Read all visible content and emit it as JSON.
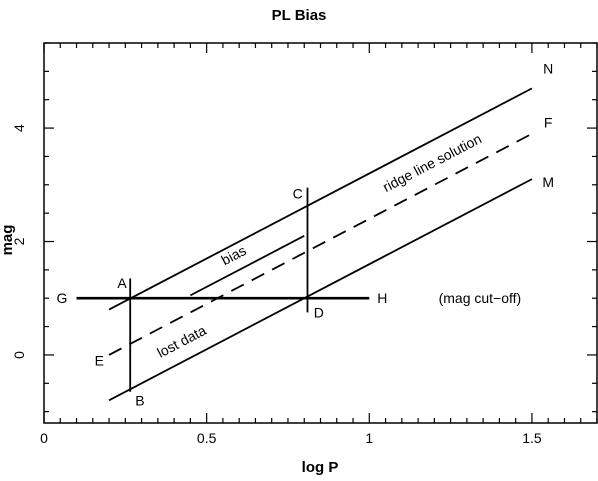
{
  "chart_data": {
    "type": "line",
    "title": "PL Bias",
    "xlabel": "log P",
    "ylabel": "mag",
    "xlim": [
      0,
      1.7
    ],
    "ylim": [
      -1.2,
      5.5
    ],
    "grid": false,
    "x_ticks": [
      0,
      0.5,
      1,
      1.5
    ],
    "x_tick_labels": [
      "0",
      "0.5",
      "1",
      "1.5"
    ],
    "y_ticks": [
      0,
      2,
      4
    ],
    "y_tick_labels": [
      "0",
      "2",
      "4"
    ],
    "series": [
      {
        "id": "N",
        "style": "solid",
        "x": [
          0.2,
          1.5
        ],
        "y": [
          0.8,
          4.7
        ]
      },
      {
        "id": "F",
        "style": "dashed",
        "x": [
          0.2,
          1.5
        ],
        "y": [
          0.0,
          3.9
        ]
      },
      {
        "id": "M",
        "style": "solid",
        "x": [
          0.2,
          1.5
        ],
        "y": [
          -0.8,
          3.1
        ]
      },
      {
        "id": "bias",
        "style": "solid",
        "x": [
          0.45,
          0.8
        ],
        "y": [
          1.05,
          2.1
        ]
      },
      {
        "id": "cutoff",
        "style": "bold",
        "x": [
          0.1,
          1.0
        ],
        "y": [
          1.0,
          1.0
        ]
      },
      {
        "id": "vline-AB",
        "style": "solid",
        "x": [
          0.265,
          0.265
        ],
        "y": [
          -0.65,
          1.35
        ]
      },
      {
        "id": "vline-CD",
        "style": "solid",
        "x": [
          0.81,
          0.81
        ],
        "y": [
          0.75,
          2.95
        ]
      }
    ],
    "annotations": [
      {
        "text": "A",
        "x": 0.24,
        "y": 1.27
      },
      {
        "text": "B",
        "x": 0.295,
        "y": -0.8
      },
      {
        "text": "C",
        "x": 0.78,
        "y": 2.85
      },
      {
        "text": "D",
        "x": 0.845,
        "y": 0.75
      },
      {
        "text": "E",
        "x": 0.17,
        "y": -0.1
      },
      {
        "text": "F",
        "x": 1.55,
        "y": 4.1
      },
      {
        "text": "G",
        "x": 0.055,
        "y": 1.0
      },
      {
        "text": "H",
        "x": 1.04,
        "y": 1.0
      },
      {
        "text": "M",
        "x": 1.55,
        "y": 3.05
      },
      {
        "text": "N",
        "x": 1.55,
        "y": 5.05
      },
      {
        "text": "bias",
        "x": 0.59,
        "y": 1.77,
        "rotate": true
      },
      {
        "text": "lost data",
        "x": 0.43,
        "y": 0.25,
        "rotate": true
      },
      {
        "text": "ridge line solution",
        "x": 1.2,
        "y": 3.4,
        "rotate": true
      },
      {
        "text": "(mag cut−off)",
        "x": 1.34,
        "y": 1.0
      }
    ]
  }
}
